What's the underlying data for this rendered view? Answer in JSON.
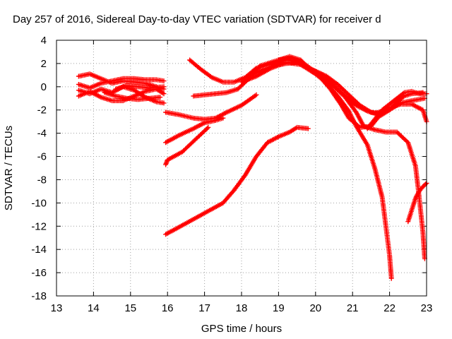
{
  "chart_data": {
    "type": "scatter",
    "title": "Day 257 of 2016, Sidereal Day-to-day VTEC variation (SDTVAR) for receiver d",
    "xlabel": "GPS time / hours",
    "ylabel": "SDTVAR / TECUs",
    "xlim": [
      13,
      23
    ],
    "ylim": [
      -18,
      4
    ],
    "x_ticks": [
      "13",
      "14",
      "15",
      "16",
      "17",
      "18",
      "19",
      "20",
      "21",
      "22",
      "23"
    ],
    "y_ticks": [
      "-18",
      "-16",
      "-14",
      "-12",
      "-10",
      "-8",
      "-6",
      "-4",
      "-2",
      "0",
      "2",
      "4"
    ],
    "grid": true,
    "marker": "plus",
    "color": "#ff0000",
    "series": [
      {
        "points": [
          [
            13.6,
            0.9
          ],
          [
            13.9,
            1.1
          ],
          [
            14.2,
            0.7
          ],
          [
            14.5,
            0.3
          ],
          [
            14.8,
            0.5
          ],
          [
            15.1,
            0.4
          ],
          [
            15.4,
            0.3
          ],
          [
            15.7,
            0.0
          ],
          [
            15.9,
            -0.2
          ]
        ]
      },
      {
        "points": [
          [
            13.6,
            -0.3
          ],
          [
            13.9,
            -0.6
          ],
          [
            14.2,
            -0.2
          ],
          [
            14.5,
            -0.5
          ],
          [
            14.8,
            0.0
          ],
          [
            15.1,
            -0.3
          ],
          [
            15.4,
            -0.9
          ],
          [
            15.7,
            -1.3
          ],
          [
            15.9,
            -1.4
          ]
        ]
      },
      {
        "points": [
          [
            13.6,
            -0.8
          ],
          [
            13.9,
            -0.4
          ],
          [
            14.2,
            -0.9
          ],
          [
            14.5,
            -1.2
          ],
          [
            14.8,
            -1.2
          ],
          [
            15.1,
            -0.8
          ],
          [
            15.4,
            -0.4
          ],
          [
            15.7,
            -0.2
          ],
          [
            15.9,
            -0.6
          ]
        ]
      },
      {
        "points": [
          [
            13.6,
            0.2
          ],
          [
            13.9,
            -0.1
          ],
          [
            14.2,
            0.3
          ],
          [
            14.5,
            0.5
          ],
          [
            14.8,
            0.7
          ],
          [
            15.1,
            0.7
          ],
          [
            15.4,
            0.6
          ],
          [
            15.7,
            0.6
          ],
          [
            15.9,
            0.5
          ]
        ]
      },
      {
        "points": [
          [
            14.3,
            -0.5
          ],
          [
            14.6,
            -0.8
          ],
          [
            14.9,
            -1.0
          ],
          [
            15.2,
            -1.1
          ],
          [
            15.5,
            -1.0
          ],
          [
            15.8,
            -0.9
          ]
        ]
      },
      {
        "points": [
          [
            14.6,
            -0.2
          ],
          [
            14.9,
            0.1
          ],
          [
            15.2,
            0.0
          ],
          [
            15.5,
            -0.1
          ],
          [
            15.9,
            0.0
          ]
        ]
      },
      {
        "points": [
          [
            15.95,
            -2.2
          ],
          [
            16.3,
            -2.4
          ],
          [
            16.7,
            -2.7
          ],
          [
            17.0,
            -2.8
          ],
          [
            17.3,
            -2.7
          ],
          [
            17.6,
            -2.2
          ],
          [
            18.0,
            -1.6
          ],
          [
            18.4,
            -0.7
          ]
        ]
      },
      {
        "points": [
          [
            15.95,
            -4.8
          ],
          [
            16.3,
            -4.2
          ],
          [
            16.7,
            -3.6
          ],
          [
            17.0,
            -3.1
          ],
          [
            17.3,
            -2.9
          ],
          [
            17.5,
            -2.7
          ]
        ]
      },
      {
        "points": [
          [
            15.95,
            -6.7
          ],
          [
            16.0,
            -6.3
          ],
          [
            16.4,
            -5.6
          ],
          [
            16.8,
            -4.4
          ],
          [
            17.1,
            -3.5
          ]
        ]
      },
      {
        "points": [
          [
            15.95,
            -12.7
          ],
          [
            16.3,
            -12.1
          ],
          [
            16.7,
            -11.4
          ],
          [
            17.1,
            -10.7
          ],
          [
            17.5,
            -10.0
          ],
          [
            17.8,
            -8.9
          ],
          [
            18.1,
            -7.6
          ],
          [
            18.4,
            -6.0
          ],
          [
            18.7,
            -4.8
          ],
          [
            19.0,
            -4.3
          ],
          [
            19.3,
            -3.9
          ],
          [
            19.5,
            -3.5
          ],
          [
            19.8,
            -3.6
          ]
        ]
      },
      {
        "points": [
          [
            16.6,
            2.3
          ],
          [
            16.9,
            1.5
          ],
          [
            17.2,
            0.8
          ],
          [
            17.5,
            0.4
          ],
          [
            17.8,
            0.4
          ],
          [
            18.1,
            0.8
          ],
          [
            18.4,
            1.6
          ],
          [
            18.8,
            2.0
          ],
          [
            19.2,
            2.3
          ],
          [
            19.5,
            2.2
          ],
          [
            19.8,
            1.6
          ],
          [
            20.1,
            1.2
          ],
          [
            20.3,
            0.9
          ],
          [
            20.6,
            0.2
          ],
          [
            20.9,
            -0.7
          ],
          [
            21.2,
            -1.6
          ],
          [
            21.5,
            -2.2
          ],
          [
            21.8,
            -2.3
          ],
          [
            22.0,
            -2.0
          ],
          [
            22.2,
            -1.3
          ],
          [
            22.4,
            -0.8
          ],
          [
            22.6,
            -0.6
          ],
          [
            22.9,
            -0.5
          ]
        ]
      },
      {
        "points": [
          [
            16.7,
            -0.8
          ],
          [
            17.0,
            -0.7
          ],
          [
            17.3,
            -0.6
          ],
          [
            17.6,
            -0.5
          ],
          [
            17.9,
            -0.2
          ],
          [
            18.2,
            0.7
          ],
          [
            18.5,
            1.8
          ],
          [
            18.9,
            2.2
          ],
          [
            19.3,
            2.6
          ],
          [
            19.6,
            2.3
          ],
          [
            19.9,
            1.3
          ],
          [
            20.2,
            0.7
          ],
          [
            20.5,
            0.0
          ],
          [
            20.8,
            -0.9
          ],
          [
            21.1,
            -2.2
          ],
          [
            21.3,
            -3.4
          ],
          [
            21.6,
            -3.7
          ],
          [
            21.9,
            -3.9
          ],
          [
            22.2,
            -3.9
          ],
          [
            22.5,
            -4.8
          ],
          [
            22.7,
            -6.8
          ],
          [
            22.8,
            -9.5
          ],
          [
            22.9,
            -12.5
          ],
          [
            22.95,
            -14.8
          ]
        ]
      },
      {
        "points": [
          [
            18.3,
            1.1
          ],
          [
            18.6,
            1.5
          ],
          [
            18.9,
            1.8
          ],
          [
            19.2,
            2.0
          ],
          [
            19.5,
            2.1
          ],
          [
            19.8,
            1.6
          ],
          [
            20.1,
            0.9
          ],
          [
            20.4,
            -0.2
          ],
          [
            20.7,
            -1.6
          ],
          [
            20.9,
            -2.7
          ],
          [
            21.2,
            -3.5
          ],
          [
            21.5,
            -3.4
          ],
          [
            21.7,
            -2.6
          ],
          [
            22.0,
            -2.0
          ],
          [
            22.3,
            -1.4
          ],
          [
            22.6,
            -1.2
          ],
          [
            22.95,
            -1.0
          ]
        ]
      },
      {
        "points": [
          [
            18.0,
            0.4
          ],
          [
            18.4,
            0.9
          ],
          [
            18.8,
            1.6
          ],
          [
            19.2,
            2.1
          ],
          [
            19.6,
            1.9
          ],
          [
            20.0,
            1.1
          ],
          [
            20.3,
            0.3
          ],
          [
            20.6,
            -0.8
          ],
          [
            20.9,
            -2.1
          ],
          [
            21.1,
            -3.4
          ],
          [
            21.4,
            -5.0
          ],
          [
            21.6,
            -7.0
          ],
          [
            21.8,
            -9.5
          ],
          [
            21.9,
            -12.0
          ],
          [
            22.0,
            -14.5
          ],
          [
            22.05,
            -16.5
          ]
        ]
      },
      {
        "points": [
          [
            19.0,
            2.3
          ],
          [
            19.3,
            2.5
          ],
          [
            19.6,
            2.2
          ],
          [
            19.9,
            1.5
          ],
          [
            20.2,
            1.0
          ],
          [
            20.5,
            0.1
          ],
          [
            20.8,
            -0.8
          ],
          [
            21.1,
            -1.6
          ],
          [
            21.4,
            -2.1
          ],
          [
            21.6,
            -2.3
          ],
          [
            21.8,
            -2.1
          ],
          [
            22.0,
            -1.8
          ],
          [
            22.3,
            -1.5
          ],
          [
            22.6,
            -1.5
          ],
          [
            22.9,
            -2.0
          ],
          [
            23.0,
            -3.0
          ]
        ]
      },
      {
        "points": [
          [
            22.5,
            -11.6
          ],
          [
            22.6,
            -10.6
          ],
          [
            22.7,
            -9.6
          ],
          [
            22.8,
            -9.0
          ],
          [
            22.9,
            -8.6
          ],
          [
            23.0,
            -8.3
          ]
        ]
      },
      {
        "points": [
          [
            21.4,
            -3.6
          ],
          [
            21.6,
            -2.8
          ],
          [
            21.8,
            -2.0
          ],
          [
            22.0,
            -1.5
          ],
          [
            22.2,
            -1.0
          ],
          [
            22.4,
            -0.5
          ],
          [
            22.6,
            -0.4
          ],
          [
            22.8,
            -0.6
          ],
          [
            23.0,
            -0.6
          ]
        ]
      }
    ]
  }
}
